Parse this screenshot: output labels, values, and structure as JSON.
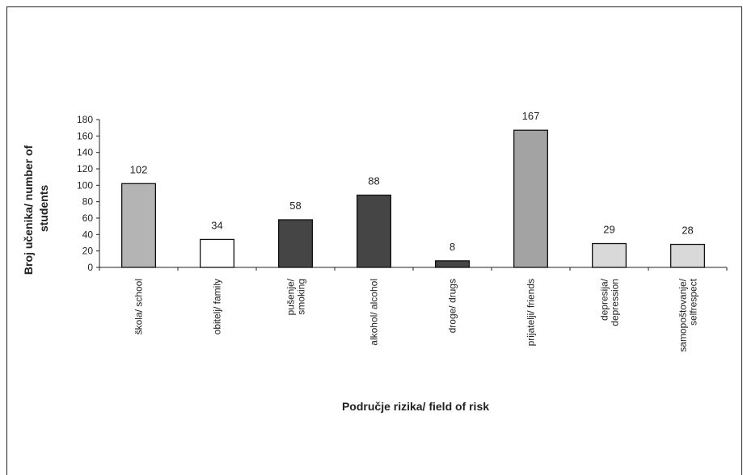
{
  "chart_data": {
    "type": "bar",
    "title": "",
    "xlabel": "Područje rizika/ field of risk",
    "ylabel_lines": [
      "Broj učenika/ number of",
      "students"
    ],
    "ylim": [
      0,
      180
    ],
    "yticks": [
      0,
      20,
      40,
      60,
      80,
      100,
      120,
      140,
      160,
      180
    ],
    "grid": false,
    "legend": "none",
    "categories": [
      [
        "škola/ school"
      ],
      [
        "obitelj/ family"
      ],
      [
        "pušenje/",
        "smoking"
      ],
      [
        "alkohol/ alcohol"
      ],
      [
        "droge/ drugs"
      ],
      [
        "prijatelji/ friends"
      ],
      [
        "depresija/",
        "depression"
      ],
      [
        "samopoštovanje/",
        "selfrespect"
      ]
    ],
    "values": [
      102,
      34,
      58,
      88,
      8,
      167,
      29,
      28
    ],
    "colors": [
      "#b4b4b4",
      "#ffffff",
      "#454545",
      "#454545",
      "#454545",
      "#a3a3a3",
      "#d9d9d9",
      "#d9d9d9"
    ],
    "value_labels": [
      "102",
      "34",
      "58",
      "88",
      "8",
      "167",
      "29",
      "28"
    ]
  }
}
